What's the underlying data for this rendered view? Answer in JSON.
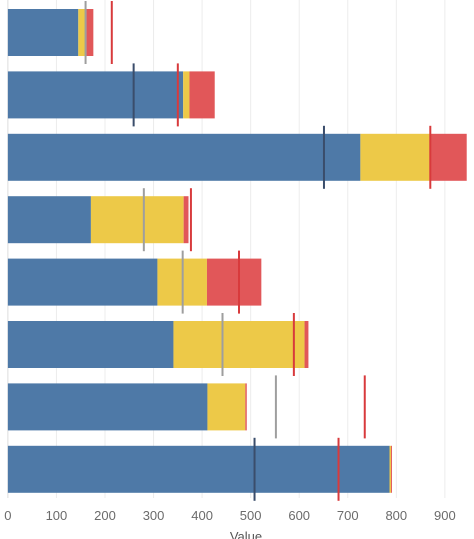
{
  "chart_data": {
    "type": "bar",
    "orientation": "horizontal",
    "stacked": true,
    "xlabel": "Value",
    "xlim": [
      -8,
      960
    ],
    "x_ticks": [
      0,
      100,
      200,
      300,
      400,
      500,
      600,
      700,
      800,
      900
    ],
    "grid": true,
    "colors": {
      "blue": "#4e79a7",
      "yellow": "#edc948",
      "red": "#e15759",
      "gray_marker": "#9e9e9e",
      "dark_marker": "#3a4d6b",
      "red_marker": "#d83a3c"
    },
    "rows": [
      {
        "segments": [
          145,
          17,
          14
        ],
        "markers": [
          {
            "value": 160,
            "color": "gray_marker"
          },
          {
            "value": 214,
            "color": "red_marker"
          }
        ]
      },
      {
        "segments": [
          361,
          13,
          52
        ],
        "markers": [
          {
            "value": 259,
            "color": "dark_marker"
          },
          {
            "value": 350,
            "color": "red_marker"
          }
        ]
      },
      {
        "segments": [
          726,
          143,
          76
        ],
        "markers": [
          {
            "value": 651,
            "color": "dark_marker"
          },
          {
            "value": 870,
            "color": "red_marker"
          }
        ]
      },
      {
        "segments": [
          171,
          191,
          10
        ],
        "markers": [
          {
            "value": 280,
            "color": "gray_marker"
          },
          {
            "value": 377,
            "color": "red_marker"
          }
        ]
      },
      {
        "segments": [
          308,
          102,
          112
        ],
        "markers": [
          {
            "value": 360,
            "color": "gray_marker"
          },
          {
            "value": 476,
            "color": "red_marker"
          }
        ]
      },
      {
        "segments": [
          341,
          270,
          8
        ],
        "markers": [
          {
            "value": 442,
            "color": "gray_marker"
          },
          {
            "value": 589,
            "color": "red_marker"
          }
        ]
      },
      {
        "segments": [
          411,
          78,
          3
        ],
        "markers": [
          {
            "value": 552,
            "color": "gray_marker"
          },
          {
            "value": 735,
            "color": "red_marker"
          }
        ]
      },
      {
        "segments": [
          786,
          3,
          2
        ],
        "markers": [
          {
            "value": 508,
            "color": "dark_marker"
          },
          {
            "value": 681,
            "color": "red_marker"
          }
        ]
      }
    ]
  }
}
